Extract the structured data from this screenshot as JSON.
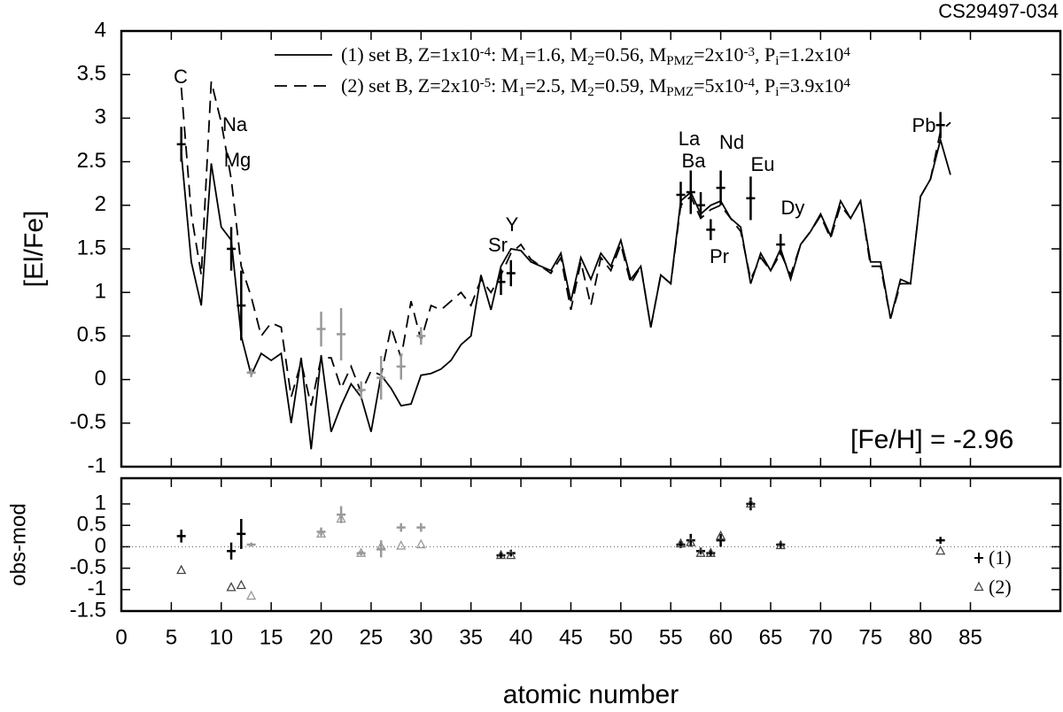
{
  "chart_data": [
    {
      "type": "line",
      "title": "CS29497-034",
      "ylabel": "[El/Fe]",
      "note": "[Fe/H] = -2.96",
      "xlim": [
        0,
        94
      ],
      "ylim": [
        -1,
        4
      ],
      "xticks": [
        0,
        5,
        10,
        15,
        20,
        25,
        30,
        35,
        40,
        45,
        50,
        55,
        60,
        65,
        70,
        75,
        80,
        85
      ],
      "yticks": [
        -1,
        -0.5,
        0,
        0.5,
        1,
        1.5,
        2,
        2.5,
        3,
        3.5,
        4
      ],
      "x": [
        6,
        7,
        8,
        9,
        10,
        11,
        12,
        13,
        14,
        15,
        16,
        17,
        18,
        19,
        20,
        21,
        22,
        23,
        24,
        25,
        26,
        27,
        28,
        29,
        30,
        31,
        32,
        33,
        34,
        35,
        36,
        37,
        38,
        39,
        40,
        41,
        42,
        43,
        44,
        45,
        46,
        47,
        48,
        49,
        50,
        51,
        52,
        53,
        54,
        55,
        56,
        57,
        58,
        59,
        60,
        61,
        62,
        63,
        64,
        65,
        66,
        67,
        68,
        69,
        70,
        71,
        72,
        73,
        74,
        75,
        76,
        77,
        78,
        79,
        80,
        81,
        82,
        83
      ],
      "series": [
        {
          "name": [
            {
              "text": "(1) set B, Z=1x10",
              "pos": "base"
            },
            {
              "text": "-4",
              "pos": "sup"
            },
            {
              "text": ": M",
              "pos": "base"
            },
            {
              "text": "1",
              "pos": "sub"
            },
            {
              "text": "=1.6, M",
              "pos": "base"
            },
            {
              "text": "2",
              "pos": "sub"
            },
            {
              "text": "=0.56, M",
              "pos": "base"
            },
            {
              "text": "PMZ",
              "pos": "sub"
            },
            {
              "text": "=2x10",
              "pos": "base"
            },
            {
              "text": "-3",
              "pos": "sup"
            },
            {
              "text": ", P",
              "pos": "base"
            },
            {
              "text": "i",
              "pos": "sub"
            },
            {
              "text": "=1.2x10",
              "pos": "base"
            },
            {
              "text": "4",
              "pos": "sup"
            }
          ],
          "color": "#000000",
          "dash": "solid",
          "values": [
            2.6,
            1.35,
            0.85,
            2.48,
            1.75,
            1.6,
            0.5,
            0.05,
            0.3,
            0.22,
            0.3,
            -0.5,
            0.25,
            -0.8,
            0.28,
            -0.6,
            -0.3,
            -0.05,
            -0.2,
            -0.6,
            0.05,
            -0.1,
            -0.3,
            -0.28,
            0.05,
            0.07,
            0.12,
            0.22,
            0.4,
            0.5,
            1.2,
            0.8,
            1.3,
            1.5,
            1.48,
            1.35,
            1.3,
            1.25,
            1.45,
            0.9,
            1.4,
            1.15,
            1.45,
            1.3,
            1.6,
            1.15,
            1.3,
            0.6,
            1.2,
            1.1,
            2.05,
            2.15,
            1.9,
            2.0,
            2.05,
            1.85,
            1.75,
            1.1,
            1.45,
            1.25,
            1.5,
            1.15,
            1.55,
            1.7,
            1.9,
            1.65,
            2.05,
            1.85,
            2.05,
            1.35,
            1.35,
            0.7,
            1.15,
            1.1,
            2.1,
            2.3,
            2.75,
            2.35
          ]
        },
        {
          "name": [
            {
              "text": "(2) set B, Z=2x10",
              "pos": "base"
            },
            {
              "text": "-5",
              "pos": "sup"
            },
            {
              "text": ": M",
              "pos": "base"
            },
            {
              "text": "1",
              "pos": "sub"
            },
            {
              "text": "=2.5, M",
              "pos": "base"
            },
            {
              "text": "2",
              "pos": "sub"
            },
            {
              "text": "=0.59, M",
              "pos": "base"
            },
            {
              "text": "PMZ",
              "pos": "sub"
            },
            {
              "text": "=5x10",
              "pos": "base"
            },
            {
              "text": "-4",
              "pos": "sup"
            },
            {
              "text": ", P",
              "pos": "base"
            },
            {
              "text": "i",
              "pos": "sub"
            },
            {
              "text": "=3.9x10",
              "pos": "base"
            },
            {
              "text": "4",
              "pos": "sup"
            }
          ],
          "color": "#000000",
          "dash": "dashed",
          "values": [
            3.35,
            1.9,
            1.2,
            3.42,
            2.95,
            2.3,
            1.3,
            0.95,
            0.5,
            0.65,
            0.6,
            -0.2,
            0.2,
            -0.3,
            0.25,
            0.25,
            -0.1,
            0.15,
            -0.15,
            0.1,
            0.05,
            0.6,
            0.25,
            0.9,
            0.45,
            0.85,
            0.8,
            0.9,
            1.0,
            0.85,
            1.15,
            1.0,
            1.2,
            1.45,
            1.55,
            1.38,
            1.3,
            1.22,
            1.4,
            0.8,
            1.35,
            0.85,
            1.4,
            1.25,
            1.55,
            1.1,
            1.3,
            0.6,
            1.2,
            1.1,
            2.0,
            2.1,
            1.85,
            1.95,
            2.0,
            1.85,
            1.7,
            1.15,
            1.4,
            1.25,
            1.45,
            1.2,
            1.55,
            1.7,
            1.88,
            1.62,
            2.0,
            1.85,
            2.05,
            1.3,
            1.3,
            0.7,
            1.1,
            1.1,
            2.1,
            2.3,
            2.85,
            2.95
          ]
        }
      ],
      "observations": {
        "x": [
          6,
          11,
          12,
          13,
          20,
          22,
          24,
          26,
          28,
          30,
          38,
          39,
          56,
          57,
          58,
          59,
          60,
          63,
          66,
          82
        ],
        "values": [
          2.7,
          1.5,
          0.85,
          0.08,
          0.58,
          0.52,
          -0.12,
          0.02,
          0.15,
          0.5,
          1.12,
          1.22,
          2.12,
          2.15,
          2.0,
          1.72,
          2.2,
          2.08,
          1.55,
          2.92
        ],
        "errors": [
          0.2,
          0.25,
          0.4,
          0.05,
          0.2,
          0.3,
          0.1,
          0.25,
          0.15,
          0.1,
          0.15,
          0.15,
          0.15,
          0.25,
          0.15,
          0.12,
          0.2,
          0.25,
          0.12,
          0.15
        ],
        "colors": [
          "#000000",
          "#000000",
          "#000000",
          "#999999",
          "#999999",
          "#999999",
          "#999999",
          "#999999",
          "#999999",
          "#999999",
          "#000000",
          "#000000",
          "#000000",
          "#000000",
          "#000000",
          "#000000",
          "#000000",
          "#000000",
          "#000000",
          "#000000"
        ]
      },
      "annotations": [
        "C",
        "Na",
        "Mg",
        "Sr",
        "Y",
        "Ba",
        "La",
        "Nd",
        "Pr",
        "Eu",
        "Dy",
        "Pb"
      ]
    },
    {
      "type": "scatter",
      "xlabel": "atomic number",
      "ylabel": "obs-mod",
      "xlim": [
        0,
        94
      ],
      "ylim": [
        -1.5,
        1.6
      ],
      "xticks": [
        0,
        5,
        10,
        15,
        20,
        25,
        30,
        35,
        40,
        45,
        50,
        55,
        60,
        65,
        70,
        75,
        80,
        85
      ],
      "yticks": [
        -1.5,
        -1,
        -0.5,
        0,
        0.5,
        1
      ],
      "hline": 0,
      "x": [
        6,
        11,
        12,
        13,
        20,
        22,
        24,
        26,
        28,
        30,
        38,
        39,
        56,
        57,
        58,
        59,
        60,
        63,
        66,
        82
      ],
      "colors": [
        "#000000",
        "#000000",
        "#000000",
        "#999999",
        "#999999",
        "#999999",
        "#999999",
        "#999999",
        "#999999",
        "#999999",
        "#000000",
        "#000000",
        "#000000",
        "#000000",
        "#000000",
        "#000000",
        "#000000",
        "#000000",
        "#000000",
        "#000000"
      ],
      "series": [
        {
          "name": "(1)",
          "marker": "cross",
          "values": [
            0.25,
            -0.1,
            0.3,
            0.05,
            0.35,
            0.75,
            -0.15,
            -0.05,
            0.45,
            0.45,
            -0.2,
            -0.15,
            0.05,
            0.15,
            -0.1,
            -0.15,
            0.15,
            1.0,
            0.05,
            0.15
          ],
          "errors": [
            0.15,
            0.2,
            0.35,
            0.05,
            0.1,
            0.2,
            0.05,
            0.2,
            0.1,
            0.1,
            0.08,
            0.08,
            0.08,
            0.15,
            0.08,
            0.08,
            0.15,
            0.15,
            0.08,
            0.08
          ]
        },
        {
          "name": "(2)",
          "marker": "triangle",
          "values": [
            -0.55,
            -0.95,
            -0.9,
            -1.15,
            0.3,
            0.65,
            -0.15,
            0.0,
            0.02,
            0.05,
            -0.2,
            -0.2,
            0.07,
            0.1,
            -0.15,
            -0.15,
            0.25,
            1.0,
            0.03,
            -0.1
          ]
        }
      ]
    }
  ]
}
